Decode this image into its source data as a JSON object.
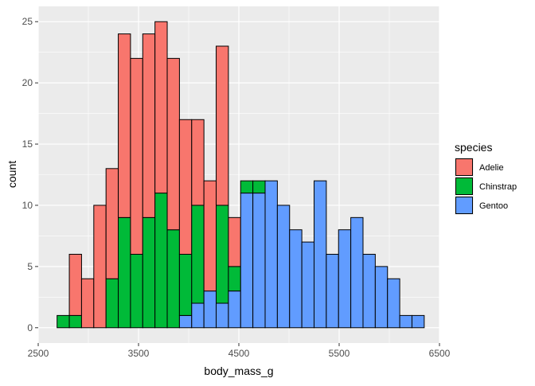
{
  "chart_data": {
    "type": "bar",
    "stacked": true,
    "xlabel": "body_mass_g",
    "ylabel": "count",
    "xlim": [
      2500,
      6500
    ],
    "ylim": [
      0,
      25
    ],
    "x_ticks": [
      2500,
      3500,
      4500,
      5500,
      6500
    ],
    "x_tick_labels": [
      "2500",
      "3500",
      "4500",
      "5500",
      "6500"
    ],
    "y_ticks": [
      0,
      5,
      10,
      15,
      20,
      25
    ],
    "y_tick_labels": [
      "0",
      "5",
      "10",
      "15",
      "20",
      "25"
    ],
    "bin_width": 122,
    "bin_starts": [
      2688,
      2810,
      2932,
      3054,
      3176,
      3298,
      3420,
      3542,
      3664,
      3786,
      3908,
      4030,
      4152,
      4274,
      4396,
      4518,
      4640,
      4762,
      4884,
      5006,
      5128,
      5250,
      5372,
      5494,
      5616,
      5738,
      5860,
      5982,
      6104,
      6226
    ],
    "series": [
      {
        "name": "Adelie",
        "color": "#F8766D",
        "values": [
          0,
          5,
          4,
          10,
          9,
          15,
          16,
          15,
          14,
          14,
          11,
          7,
          9,
          13,
          4,
          0,
          0,
          0,
          0,
          0,
          0,
          0,
          0,
          0,
          0,
          0,
          0,
          0,
          0,
          0
        ]
      },
      {
        "name": "Chinstrap",
        "color": "#00BA38",
        "values": [
          1,
          1,
          0,
          0,
          4,
          9,
          6,
          9,
          11,
          8,
          5,
          8,
          0,
          8,
          2,
          1,
          1,
          0,
          0,
          0,
          0,
          0,
          0,
          0,
          0,
          0,
          0,
          0,
          0,
          0
        ]
      },
      {
        "name": "Gentoo",
        "color": "#619CFF",
        "values": [
          0,
          0,
          0,
          0,
          0,
          0,
          0,
          0,
          0,
          0,
          1,
          2,
          3,
          2,
          3,
          11,
          11,
          12,
          10,
          8,
          7,
          12,
          6,
          8,
          9,
          6,
          5,
          4,
          1,
          1
        ]
      }
    ],
    "grid": true,
    "legend": {
      "title": "species",
      "position": "right",
      "entries": [
        "Adelie",
        "Chinstrap",
        "Gentoo"
      ]
    }
  }
}
